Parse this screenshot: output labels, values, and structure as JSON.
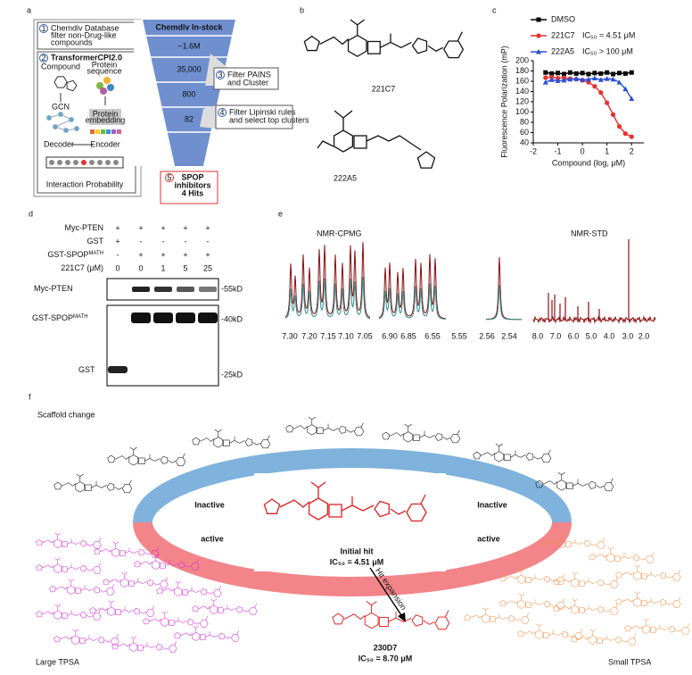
{
  "figure": {
    "panel_labels": [
      "a",
      "b",
      "c",
      "d",
      "e",
      "f"
    ],
    "a": {
      "step1": {
        "number": "1",
        "lines": [
          "Chemdiv Database",
          "filter non-Drug-like",
          "compounds"
        ]
      },
      "step2": {
        "number": "2",
        "title": "TransformerCPI2.0",
        "compound": "Compound",
        "protein": [
          "Protein",
          "sequence"
        ],
        "gcn": "GCN",
        "embedding": [
          "Protein",
          "embedding"
        ],
        "encoder": "Encoder",
        "decoder": "Decoder",
        "output": "Interaction Probability"
      },
      "funnel": [
        "Chemdiv In-stock",
        "~1.6M",
        "35,000",
        "800",
        "82"
      ],
      "step3": {
        "number": "3",
        "lines": [
          "Filter PAINS",
          "and Cluster"
        ]
      },
      "step4": {
        "number": "4",
        "lines": [
          "Filter Lipinski rules",
          "and select top clusters"
        ]
      },
      "step5": {
        "number": "5",
        "lines": [
          "SPOP",
          "inhibitors",
          "4 Hits"
        ]
      }
    },
    "b": {
      "compounds": [
        "221C7",
        "222A5"
      ]
    },
    "d": {
      "row_labels": [
        {
          "text": "Myc-PTEN"
        },
        {
          "text": "GST"
        },
        {
          "text": "GST-SPOP",
          "sup": "MATH"
        },
        {
          "text": "221C7 (μM)"
        }
      ],
      "rows": [
        [
          "+",
          "+",
          "+",
          "+",
          "+"
        ],
        [
          "+",
          "-",
          "-",
          "-",
          "-"
        ],
        [
          "-",
          "+",
          "+",
          "+",
          "+"
        ],
        [
          "0",
          "0",
          "1",
          "5",
          "25"
        ]
      ],
      "bands": [
        {
          "text": "Myc-PTEN"
        },
        {
          "text": "GST-SPOP",
          "sup": "MATH"
        },
        {
          "text": "GST"
        }
      ],
      "markers": [
        "-55kD",
        "-40kD",
        "-25kD"
      ]
    },
    "e": {
      "titles": [
        "NMR-CPMG",
        "NMR-STD"
      ],
      "cpmg_ticks": [
        "7.30",
        "7.20",
        "7.15",
        "7.10",
        "7.05",
        "6.90",
        "6.85",
        "6.55",
        "5.55",
        "2.56",
        "2.54"
      ],
      "std_ticks": [
        "8.0",
        "7.0",
        "6.0",
        "5.0",
        "4.0",
        "3.0",
        "2.0"
      ]
    },
    "f": {
      "title": "Scaffold change",
      "inactive": [
        "Inactive",
        "Inactive"
      ],
      "active": [
        "active",
        "active"
      ],
      "initial_hit": {
        "label": "Initial hit",
        "ic50": "IC₅₀ = 4.51 μM"
      },
      "arrow": "Hit expansion",
      "expanded": {
        "name": "230D7",
        "ic50": "IC₅₀ = 8.70 μM"
      },
      "large": "Large TPSA",
      "small": "Small TPSA"
    }
  },
  "chart_data": {
    "type": "scatter",
    "xlabel": "Compound (log, μM)",
    "ylabel": "Fluorescence Polarization (mP)",
    "x": [
      -1.5,
      -1.25,
      -1.0,
      -0.75,
      -0.5,
      -0.25,
      0.0,
      0.25,
      0.5,
      0.75,
      1.0,
      1.25,
      1.5,
      1.75,
      2.0
    ],
    "series": [
      {
        "name": "DMSO",
        "color": "#000000",
        "marker": "square",
        "values": [
          177,
          175,
          176,
          174,
          177,
          175,
          176,
          174,
          176,
          175,
          177,
          174,
          176,
          175,
          177
        ]
      },
      {
        "name": "221C7",
        "annotation": "IC₅₀ = 4.51 μM",
        "color": "#e8312f",
        "marker": "circle",
        "values": [
          167,
          168,
          166,
          167,
          165,
          164,
          162,
          158,
          150,
          138,
          118,
          95,
          72,
          58,
          52
        ]
      },
      {
        "name": "222A5",
        "annotation": "IC₅₀ > 100 μM",
        "color": "#2b4fd8",
        "marker": "triangle",
        "values": [
          158,
          163,
          161,
          162,
          164,
          165,
          163,
          164,
          166,
          163,
          165,
          164,
          158,
          145,
          126
        ]
      }
    ],
    "xlim": [
      -2,
      2.5
    ],
    "ylim": [
      40,
      200
    ],
    "xticks": [
      -2,
      -1,
      0,
      1,
      2
    ],
    "yticks": [
      40,
      60,
      80,
      100,
      120,
      140,
      160,
      180,
      200
    ]
  }
}
